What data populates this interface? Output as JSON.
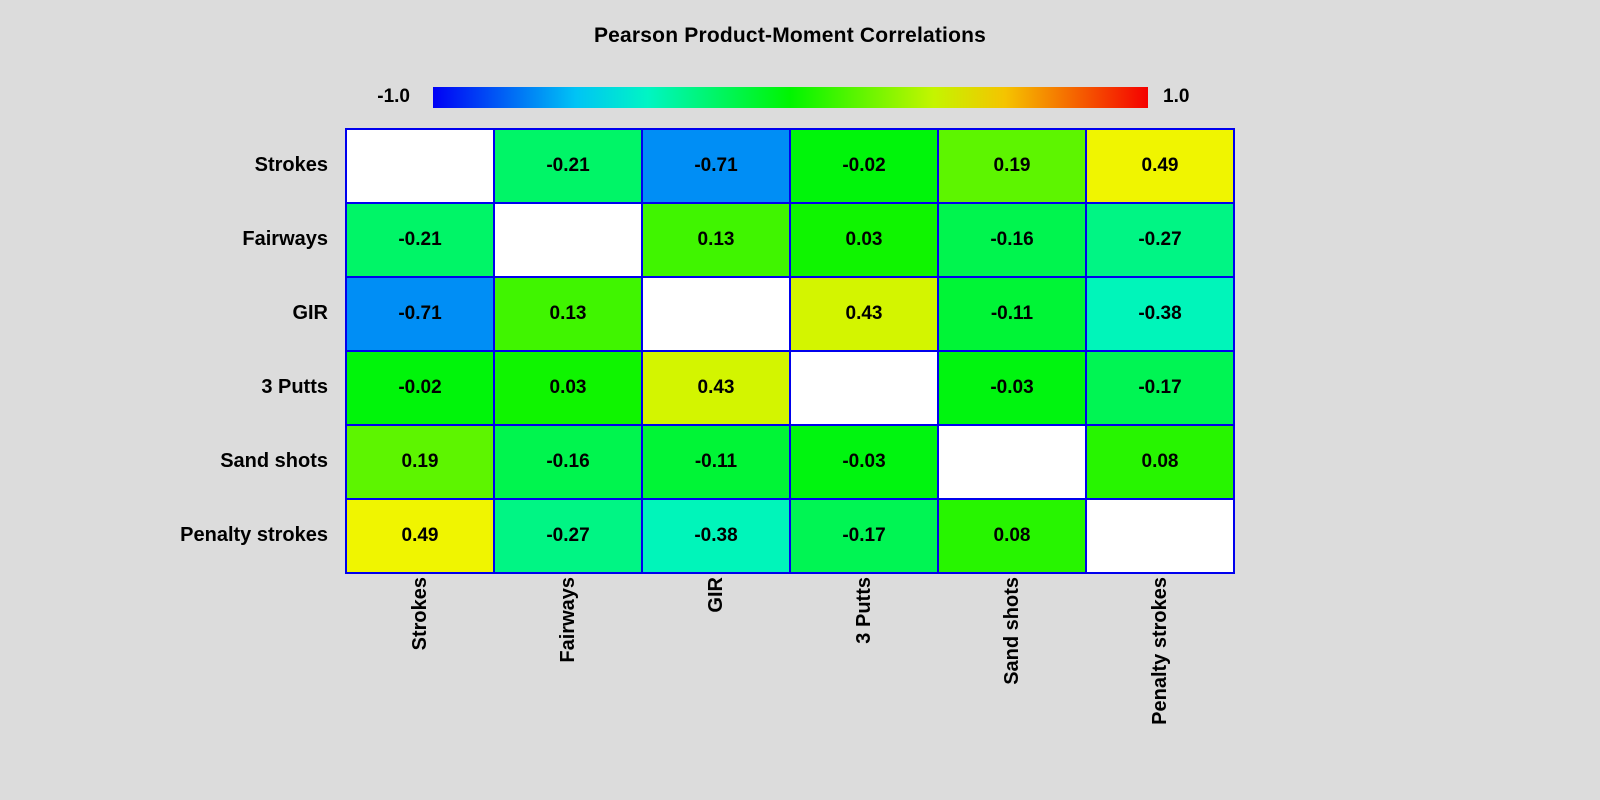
{
  "title": "Pearson Product-Moment Correlations",
  "colorbar": {
    "min_label": "-1.0",
    "max_label": "1.0"
  },
  "chart_data": {
    "type": "heatmap",
    "title": "Pearson Product-Moment Correlations",
    "categories": [
      "Strokes",
      "Fairways",
      "GIR",
      "3 Putts",
      "Sand shots",
      "Penalty strokes"
    ],
    "matrix": [
      [
        null,
        -0.21,
        -0.71,
        -0.02,
        0.19,
        0.49
      ],
      [
        -0.21,
        null,
        0.13,
        0.03,
        -0.16,
        -0.27
      ],
      [
        -0.71,
        0.13,
        null,
        0.43,
        -0.11,
        -0.38
      ],
      [
        -0.02,
        0.03,
        0.43,
        null,
        -0.03,
        -0.17
      ],
      [
        0.19,
        -0.16,
        -0.11,
        -0.03,
        null,
        0.08
      ],
      [
        0.49,
        -0.27,
        -0.38,
        -0.17,
        0.08,
        null
      ]
    ],
    "value_decimals": 2,
    "scale": {
      "min": -1.0,
      "max": 1.0,
      "min_label": "-1.0",
      "max_label": "1.0",
      "colormap": "rainbow: blue (-1) -> cyan -> green (0) -> yellow -> orange -> red (+1)",
      "min_color": "#0000f5",
      "mid_color": "#00f500",
      "max_color": "#f50000"
    },
    "diagonal_color": "#ffffff",
    "grid_line_color": "#0000ee",
    "background_color": "#dcdcdc",
    "legend_position": "top",
    "grid": true
  }
}
